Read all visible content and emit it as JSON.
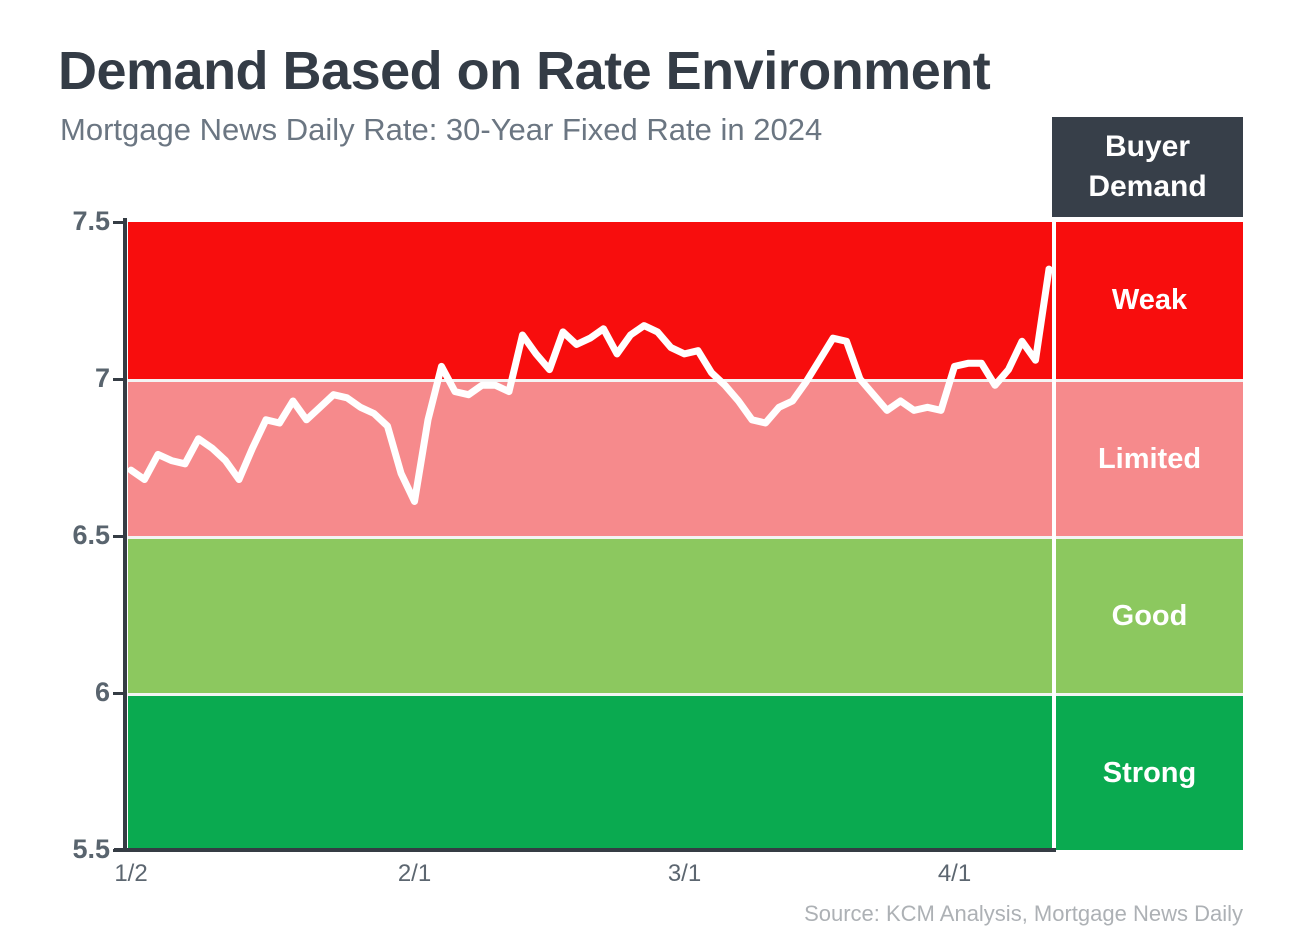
{
  "page": {
    "title": "Demand Based on Rate Environment",
    "subtitle": "Mortgage News Daily Rate: 30-Year Fixed Rate in 2024",
    "source": "Source: KCM Analysis, Mortgage News Daily"
  },
  "legend": {
    "header": "Buyer Demand"
  },
  "colors": {
    "weak_red": "#f80d0d",
    "limited_pink": "#f68a8c",
    "good_light_green": "#8cc85f",
    "strong_green": "#0aaa50",
    "header_dark": "#373f49",
    "line_white": "#ffffff"
  },
  "chart_data": {
    "type": "line",
    "title": "Demand Based on Rate Environment",
    "subtitle": "Mortgage News Daily Rate: 30-Year Fixed Rate in 2024",
    "ylim": [
      5.5,
      7.5
    ],
    "grid": false,
    "legend_position": "right",
    "y_tick_labels": [
      "7.5",
      "7",
      "6.5",
      "6",
      "5.5"
    ],
    "x_tick_labels": [
      "1/2",
      "2/1",
      "3/1",
      "4/1"
    ],
    "x_tick_indices": [
      0,
      21,
      41,
      61
    ],
    "x": [
      "1/2",
      "1/3",
      "1/4",
      "1/5",
      "1/8",
      "1/9",
      "1/10",
      "1/11",
      "1/12",
      "1/16",
      "1/17",
      "1/18",
      "1/19",
      "1/22",
      "1/23",
      "1/24",
      "1/25",
      "1/26",
      "1/29",
      "1/30",
      "1/31",
      "2/1",
      "2/2",
      "2/5",
      "2/6",
      "2/7",
      "2/8",
      "2/9",
      "2/12",
      "2/13",
      "2/14",
      "2/15",
      "2/16",
      "2/20",
      "2/21",
      "2/22",
      "2/23",
      "2/26",
      "2/27",
      "2/28",
      "2/29",
      "3/1",
      "3/4",
      "3/5",
      "3/6",
      "3/7",
      "3/8",
      "3/11",
      "3/12",
      "3/13",
      "3/14",
      "3/15",
      "3/18",
      "3/19",
      "3/20",
      "3/21",
      "3/22",
      "3/25",
      "3/26",
      "3/27",
      "3/28",
      "4/1",
      "4/2",
      "4/3",
      "4/4",
      "4/5",
      "4/8",
      "4/9",
      "4/10"
    ],
    "series": [
      {
        "name": "30-Year Fixed Rate",
        "color": "#ffffff",
        "values": [
          6.71,
          6.68,
          6.76,
          6.74,
          6.73,
          6.81,
          6.78,
          6.74,
          6.68,
          6.78,
          6.87,
          6.86,
          6.93,
          6.87,
          6.91,
          6.95,
          6.94,
          6.91,
          6.89,
          6.85,
          6.7,
          6.61,
          6.87,
          7.04,
          6.96,
          6.95,
          6.98,
          6.98,
          6.96,
          7.14,
          7.08,
          7.03,
          7.15,
          7.11,
          7.13,
          7.16,
          7.08,
          7.14,
          7.17,
          7.15,
          7.1,
          7.08,
          7.09,
          7.02,
          6.98,
          6.93,
          6.87,
          6.86,
          6.91,
          6.93,
          6.99,
          7.06,
          7.13,
          7.12,
          7.0,
          6.95,
          6.9,
          6.93,
          6.9,
          6.91,
          6.9,
          7.04,
          7.05,
          7.05,
          6.98,
          7.03,
          7.12,
          7.06,
          7.35
        ]
      }
    ],
    "bands": [
      {
        "label": "Weak",
        "from": 7.0,
        "to": 7.5,
        "color": "#f80d0d"
      },
      {
        "label": "Limited",
        "from": 6.5,
        "to": 7.0,
        "color": "#f68a8c"
      },
      {
        "label": "Good",
        "from": 6.0,
        "to": 6.5,
        "color": "#8cc85f"
      },
      {
        "label": "Strong",
        "from": 5.5,
        "to": 6.0,
        "color": "#0aaa50"
      }
    ]
  }
}
